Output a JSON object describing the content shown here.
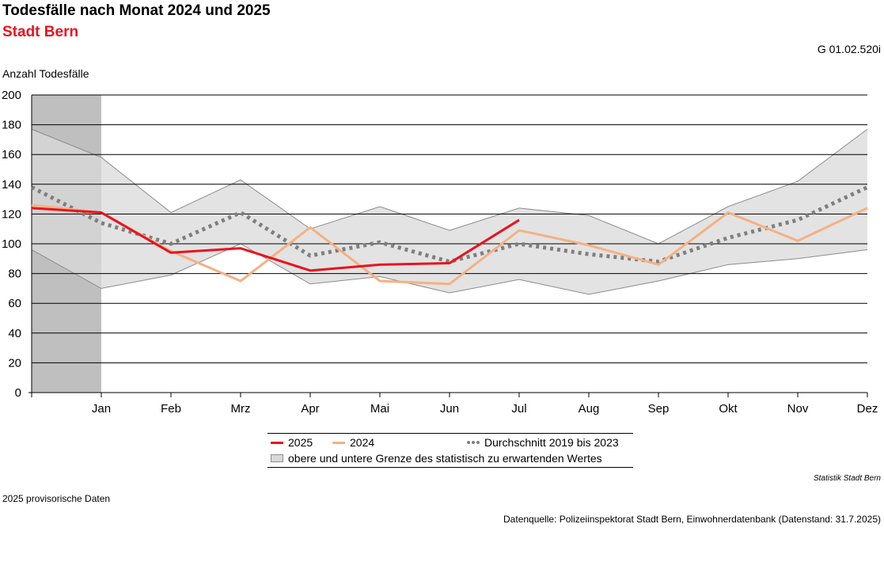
{
  "header": {
    "title": "Todesfälle nach Monat 2024 und 2025",
    "subtitle": "Stadt Bern",
    "code": "G 01.02.520i"
  },
  "colors": {
    "s2025": "#e8141e",
    "s2024": "#f4b183",
    "avg": "#7f7f7f",
    "band": "#d9d9d9",
    "band_edge": "#8c8c8c",
    "shade": "#bfbfbf",
    "subtitle": "#e8141e"
  },
  "legend": {
    "s2025": "2025",
    "s2024": "2024",
    "avg": "Durchschnitt 2019 bis 2023",
    "band": "obere und untere Grenze des statistisch zu erwartenden Wertes"
  },
  "footer": {
    "credit": "Statistik Stadt Bern",
    "note": "2025 provisorische Daten",
    "source": "Datenquelle: Polizeiinspektorat Stadt Bern, Einwohnerdatenbank (Datenstand: 31.7.2025)"
  },
  "chart_data": {
    "type": "line",
    "title": "Todesfälle nach Monat 2024 und 2025",
    "subtitle": "Stadt Bern",
    "ylabel": "Anzahl Todesfälle",
    "xlabel": "",
    "ylim": [
      0,
      200
    ],
    "yticks": [
      0,
      20,
      40,
      60,
      80,
      100,
      120,
      140,
      160,
      180,
      200
    ],
    "grid": true,
    "legend_position": "bottom",
    "x_start_value": {
      "upper": 177,
      "lower": 96,
      "avg": 138,
      "s2024": 126,
      "s2025": 124
    },
    "categories": [
      "Jan",
      "Feb",
      "Mrz",
      "Apr",
      "Mai",
      "Jun",
      "Jul",
      "Aug",
      "Sep",
      "Okt",
      "Nov",
      "Dez"
    ],
    "series": [
      {
        "name": "2025",
        "values": [
          121,
          94,
          97,
          82,
          86,
          87,
          116,
          null,
          null,
          null,
          null,
          null
        ]
      },
      {
        "name": "2024",
        "values": [
          121,
          95,
          75,
          111,
          75,
          73,
          109,
          99,
          86,
          121,
          102,
          124
        ]
      },
      {
        "name": "Durchschnitt 2019 bis 2023",
        "values": [
          114,
          100,
          121,
          92,
          101,
          88,
          100,
          93,
          88,
          104,
          116,
          138
        ]
      }
    ],
    "band": {
      "name": "obere und untere Grenze des statistisch zu erwartenden Wertes",
      "upper": [
        158,
        121,
        143,
        110,
        125,
        109,
        124,
        119,
        100,
        125,
        142,
        177
      ],
      "lower": [
        70,
        79,
        100,
        73,
        78,
        67,
        76,
        66,
        75,
        86,
        90,
        96
      ]
    }
  }
}
